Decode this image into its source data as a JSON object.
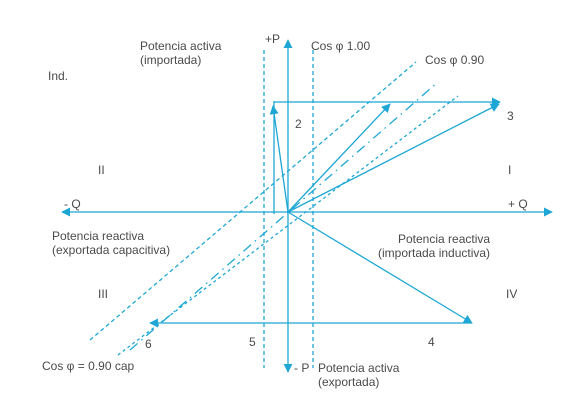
{
  "colors": {
    "line": "#1ea7d4",
    "text": "#4a4a4a",
    "background": "#ffffff"
  },
  "labels": {
    "potencia_activa_importada_1": "Potencia activa",
    "potencia_activa_importada_2": "(importada)",
    "plus_p": "+P",
    "cos_100": "Cos φ 1.00",
    "cos_090": "Cos φ 0.90",
    "ind": "Ind.",
    "num_2": "2",
    "num_3": "3",
    "quad_ii": "II",
    "quad_i": "I",
    "minus_q": "- Q",
    "plus_q": "+ Q",
    "reactiva_exportada_1": "Potencia reactiva",
    "reactiva_exportada_2": "(exportada capacitiva)",
    "reactiva_importada_1": "Potencia reactiva",
    "reactiva_importada_2": "(importada inductiva)",
    "quad_iii": "III",
    "quad_iv": "IV",
    "num_6": "6",
    "num_5": "5",
    "num_4": "4",
    "cos_090_cap": "Cos φ = 0.90 cap",
    "minus_p": "- P",
    "potencia_activa_exportada_1": "Potencia activa",
    "potencia_activa_exportada_2": "(exportada)"
  }
}
